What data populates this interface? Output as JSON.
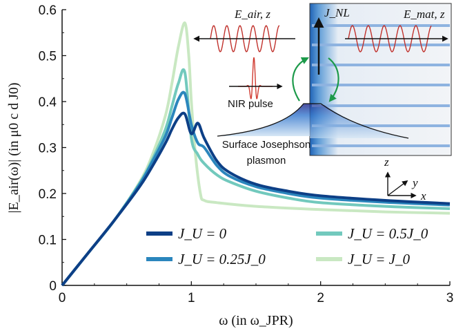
{
  "chart_data": {
    "type": "line",
    "xlabel": "ω (in ω_JPR)",
    "ylabel": "|E_air(ω)| (in μ0 c d J0)",
    "xlim": [
      0,
      3
    ],
    "ylim": [
      0,
      0.6
    ],
    "xticks": [
      "0",
      "1",
      "2",
      "3"
    ],
    "yticks": [
      "0",
      "0.1",
      "0.2",
      "0.3",
      "0.4",
      "0.5",
      "0.6"
    ],
    "legend_position": "bottom-center",
    "series": [
      {
        "name": "J_U = 0",
        "color": "#0d3f86",
        "x": [
          0,
          0.2,
          0.4,
          0.6,
          0.7,
          0.8,
          0.85,
          0.9,
          0.95,
          1.0,
          1.05,
          1.1,
          1.2,
          1.3,
          1.5,
          1.75,
          2.0,
          2.5,
          3.0
        ],
        "y": [
          0,
          0.07,
          0.14,
          0.215,
          0.26,
          0.31,
          0.34,
          0.365,
          0.373,
          0.33,
          0.353,
          0.32,
          0.27,
          0.245,
          0.22,
          0.205,
          0.195,
          0.185,
          0.178
        ]
      },
      {
        "name": "J_U = 0.25J_0",
        "color": "#2b86bd",
        "x": [
          0,
          0.2,
          0.4,
          0.6,
          0.7,
          0.8,
          0.85,
          0.9,
          0.95,
          1.0,
          1.05,
          1.1,
          1.2,
          1.3,
          1.5,
          1.75,
          2.0,
          2.5,
          3.0
        ],
        "y": [
          0,
          0.07,
          0.14,
          0.22,
          0.27,
          0.325,
          0.365,
          0.405,
          0.417,
          0.35,
          0.31,
          0.3,
          0.26,
          0.237,
          0.215,
          0.2,
          0.19,
          0.181,
          0.175
        ]
      },
      {
        "name": "J_U = 0.5J_0",
        "color": "#72c9bd",
        "x": [
          0,
          0.2,
          0.4,
          0.6,
          0.7,
          0.8,
          0.85,
          0.9,
          0.95,
          1.0,
          1.05,
          1.1,
          1.2,
          1.3,
          1.5,
          1.75,
          2.0,
          2.5,
          3.0
        ],
        "y": [
          0,
          0.07,
          0.14,
          0.222,
          0.275,
          0.34,
          0.39,
          0.44,
          0.463,
          0.32,
          0.285,
          0.265,
          0.24,
          0.225,
          0.205,
          0.19,
          0.18,
          0.172,
          0.167
        ]
      },
      {
        "name": "J_U = J_0",
        "color": "#c9e8c2",
        "x": [
          0,
          0.2,
          0.4,
          0.6,
          0.7,
          0.8,
          0.85,
          0.9,
          0.95,
          0.98,
          1.0,
          1.03,
          1.07,
          1.1,
          1.2,
          1.5,
          2.0,
          2.5,
          3.0
        ],
        "y": [
          0,
          0.07,
          0.14,
          0.225,
          0.285,
          0.37,
          0.44,
          0.52,
          0.571,
          0.5,
          0.4,
          0.29,
          0.2,
          0.185,
          0.18,
          0.172,
          0.165,
          0.16,
          0.157
        ]
      }
    ]
  },
  "legend": [
    {
      "label": "J_U = 0"
    },
    {
      "label": "J_U = 0.5J_0"
    },
    {
      "label": "J_U = 0.25J_0"
    },
    {
      "label": "J_U = J_0"
    }
  ],
  "inset": {
    "e_air_label": "E_air, z",
    "e_mat_label": "E_mat, z",
    "j_nl_label": "J_NL",
    "nir_pulse_label": "NIR pulse",
    "plasmon_label_line1": "Surface Josephson",
    "plasmon_label_line2": "plasmon",
    "axis_z": "z",
    "axis_y": "y",
    "axis_x": "x"
  }
}
